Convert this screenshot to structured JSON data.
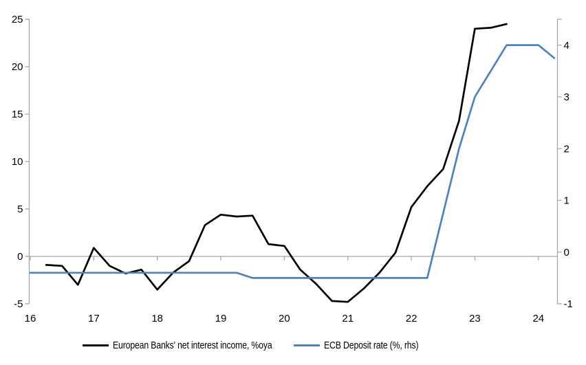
{
  "page": {
    "background": "#ffffff"
  },
  "colors": {
    "axis": "#a6a6a6",
    "zero_line": "#a6a6a6",
    "text": "#000000",
    "series_nii": "#000000",
    "series_ecb": "#4f81bd"
  },
  "chart_data": {
    "type": "line",
    "title": "",
    "grid": "zero-line-only",
    "legend_position": "bottom",
    "x_axis": {
      "ticks": [
        16,
        17,
        18,
        19,
        20,
        21,
        22,
        23,
        24
      ],
      "range": [
        16,
        24.3
      ]
    },
    "left_axis": {
      "ticks": [
        25,
        20,
        15,
        10,
        5,
        0,
        -5
      ],
      "range": [
        -5,
        25
      ]
    },
    "right_axis": {
      "ticks": [
        4,
        3,
        2,
        1,
        0,
        -1
      ],
      "range": [
        -1,
        4.5
      ]
    },
    "series": [
      {
        "name": "European Banks' net interest income, %oya",
        "axis": "left",
        "color": "#000000",
        "x": [
          16.25,
          16.5,
          16.75,
          17,
          17.25,
          17.5,
          17.75,
          18,
          18.25,
          18.5,
          18.75,
          19,
          19.25,
          19.5,
          19.75,
          20,
          20.25,
          20.5,
          20.75,
          21,
          21.25,
          21.5,
          21.75,
          22,
          22.25,
          22.5,
          22.75,
          23,
          23.25,
          23.5
        ],
        "values": [
          -0.9,
          -1,
          -3,
          0.9,
          -1,
          -1.8,
          -1.4,
          -3.5,
          -1.7,
          -0.5,
          3.3,
          4.4,
          4.2,
          4.3,
          1.3,
          1.1,
          -1.4,
          -2.9,
          -4.7,
          -4.8,
          -3.4,
          -1.7,
          0.4,
          5.2,
          7.4,
          9.2,
          14.3,
          24,
          24.1,
          24.5
        ]
      },
      {
        "name": "ECB Deposit rate (%, rhs)",
        "axis": "right",
        "color": "#4f81bd",
        "x": [
          16,
          16.25,
          16.5,
          16.75,
          17,
          17.25,
          17.5,
          17.75,
          18,
          18.25,
          18.5,
          18.75,
          19,
          19.25,
          19.5,
          19.75,
          20,
          20.25,
          20.5,
          20.75,
          21,
          21.25,
          21.5,
          21.75,
          22,
          22.25,
          22.5,
          22.75,
          23,
          23.25,
          23.5,
          23.75,
          24,
          24.25
        ],
        "values": [
          -0.4,
          -0.4,
          -0.4,
          -0.4,
          -0.4,
          -0.4,
          -0.4,
          -0.4,
          -0.4,
          -0.4,
          -0.4,
          -0.4,
          -0.4,
          -0.4,
          -0.5,
          -0.5,
          -0.5,
          -0.5,
          -0.5,
          -0.5,
          -0.5,
          -0.5,
          -0.5,
          -0.5,
          -0.5,
          -0.5,
          0.75,
          2,
          3,
          3.5,
          4,
          4,
          4,
          3.75
        ]
      }
    ]
  },
  "legend": {
    "items": [
      {
        "label": "European Banks' net interest income, %oya",
        "color": "#000000"
      },
      {
        "label": "ECB Deposit rate (%, rhs)",
        "color": "#4f81bd"
      }
    ]
  }
}
